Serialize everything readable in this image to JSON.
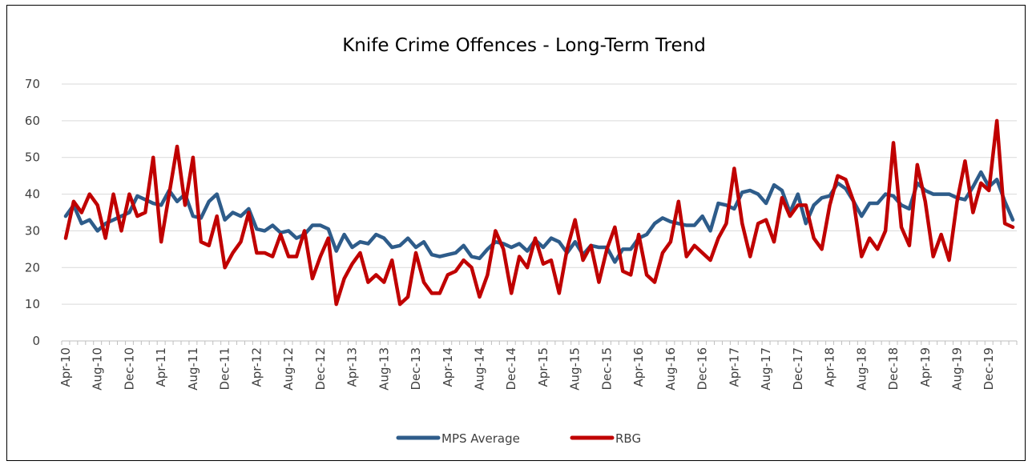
{
  "chart_data": {
    "type": "line",
    "title": "Knife Crime Offences - Long-Term Trend",
    "xlabel": "",
    "ylabel": "",
    "ylim": [
      0,
      70
    ],
    "yticks": [
      0,
      10,
      20,
      30,
      40,
      50,
      60,
      70
    ],
    "grid": "horizontal",
    "legend_position": "bottom",
    "categories": [
      "Apr-10",
      "May-10",
      "Jun-10",
      "Jul-10",
      "Aug-10",
      "Sep-10",
      "Oct-10",
      "Nov-10",
      "Dec-10",
      "Jan-11",
      "Feb-11",
      "Mar-11",
      "Apr-11",
      "May-11",
      "Jun-11",
      "Jul-11",
      "Aug-11",
      "Sep-11",
      "Oct-11",
      "Nov-11",
      "Dec-11",
      "Jan-12",
      "Feb-12",
      "Mar-12",
      "Apr-12",
      "May-12",
      "Jun-12",
      "Jul-12",
      "Aug-12",
      "Sep-12",
      "Oct-12",
      "Nov-12",
      "Dec-12",
      "Jan-13",
      "Feb-13",
      "Mar-13",
      "Apr-13",
      "May-13",
      "Jun-13",
      "Jul-13",
      "Aug-13",
      "Sep-13",
      "Oct-13",
      "Nov-13",
      "Dec-13",
      "Jan-14",
      "Feb-14",
      "Mar-14",
      "Apr-14",
      "May-14",
      "Jun-14",
      "Jul-14",
      "Aug-14",
      "Sep-14",
      "Oct-14",
      "Nov-14",
      "Dec-14",
      "Jan-15",
      "Feb-15",
      "Mar-15",
      "Apr-15",
      "May-15",
      "Jun-15",
      "Jul-15",
      "Aug-15",
      "Sep-15",
      "Oct-15",
      "Nov-15",
      "Dec-15",
      "Jan-16",
      "Feb-16",
      "Mar-16",
      "Apr-16",
      "May-16",
      "Jun-16",
      "Jul-16",
      "Aug-16",
      "Sep-16",
      "Oct-16",
      "Nov-16",
      "Dec-16",
      "Jan-17",
      "Feb-17",
      "Mar-17",
      "Apr-17",
      "May-17",
      "Jun-17",
      "Jul-17",
      "Aug-17",
      "Sep-17",
      "Oct-17",
      "Nov-17",
      "Dec-17",
      "Jan-18",
      "Feb-18",
      "Mar-18",
      "Apr-18",
      "May-18",
      "Jun-18",
      "Jul-18",
      "Aug-18",
      "Sep-18",
      "Oct-18",
      "Nov-18",
      "Dec-18",
      "Jan-19",
      "Feb-19",
      "Mar-19",
      "Apr-19",
      "May-19",
      "Jun-19",
      "Jul-19",
      "Aug-19",
      "Sep-19",
      "Oct-19",
      "Nov-19",
      "Dec-19",
      "Jan-20",
      "Feb-20",
      "Mar-20"
    ],
    "tick_labels": [
      "Apr-10",
      "Aug-10",
      "Dec-10",
      "Apr-11",
      "Aug-11",
      "Dec-11",
      "Apr-12",
      "Aug-12",
      "Dec-12",
      "Apr-13",
      "Aug-13",
      "Dec-13",
      "Apr-14",
      "Aug-14",
      "Dec-14",
      "Apr-15",
      "Aug-15",
      "Dec-15",
      "Apr-16",
      "Aug-16",
      "Dec-16",
      "Apr-17",
      "Aug-17",
      "Dec-17",
      "Apr-18",
      "Aug-18",
      "Dec-18",
      "Apr-19",
      "Aug-19",
      "Dec-19"
    ],
    "series": [
      {
        "name": "MPS Average",
        "color": "#2E5C8A",
        "values": [
          34,
          37,
          32,
          33,
          30,
          32,
          33,
          34,
          35,
          39.5,
          38.5,
          37.5,
          37,
          41,
          38,
          40,
          34,
          33.5,
          38,
          40,
          33,
          35,
          34,
          36,
          30.5,
          30,
          31.5,
          29.5,
          30,
          28,
          29,
          31.5,
          31.5,
          30.5,
          24.5,
          29,
          25.5,
          27,
          26.5,
          29,
          28,
          25.5,
          26,
          28,
          25.5,
          27,
          23.5,
          23,
          23.5,
          24,
          26,
          23,
          22.5,
          25,
          27,
          26.5,
          25.5,
          26.5,
          24.5,
          27.5,
          25.5,
          28,
          27,
          24,
          27,
          23.5,
          26,
          25.5,
          25.5,
          21.5,
          25,
          25,
          28,
          29,
          32,
          33.5,
          32.5,
          32,
          31.5,
          31.5,
          34,
          30,
          37.5,
          37,
          36,
          40.5,
          41,
          40,
          37.5,
          42.5,
          41,
          35,
          40,
          32,
          37,
          39,
          39.5,
          43,
          41.5,
          38,
          34,
          37.5,
          37.5,
          40,
          39.5,
          37,
          36,
          43,
          41,
          40,
          40,
          40,
          39,
          38.5,
          42,
          46,
          42,
          44,
          38,
          33
        ]
      },
      {
        "name": "RBG",
        "color": "#C00000",
        "values": [
          28,
          38,
          35,
          40,
          37,
          28,
          40,
          30,
          40,
          34,
          35,
          50,
          27,
          40,
          53,
          37,
          50,
          27,
          26,
          34,
          20,
          24,
          27,
          35,
          24,
          24,
          23,
          29,
          23,
          23,
          30,
          17,
          23,
          28,
          10,
          17,
          21,
          24,
          16,
          18,
          16,
          22,
          10,
          12,
          24,
          16,
          13,
          13,
          18,
          19,
          22,
          20,
          12,
          18,
          30,
          25,
          13,
          23,
          20,
          28,
          21,
          22,
          13,
          25,
          33,
          22,
          26,
          16,
          25,
          31,
          19,
          18,
          29,
          18,
          16,
          24,
          27,
          38,
          23,
          26,
          24,
          22,
          28,
          32,
          47,
          32,
          23,
          32,
          33,
          27,
          39,
          34,
          37,
          37,
          28,
          25,
          37,
          45,
          44,
          38,
          23,
          28,
          25,
          30,
          54,
          31,
          26,
          48,
          38,
          23,
          29,
          22,
          38,
          49,
          35,
          43,
          41,
          60,
          32,
          31
        ]
      }
    ]
  }
}
